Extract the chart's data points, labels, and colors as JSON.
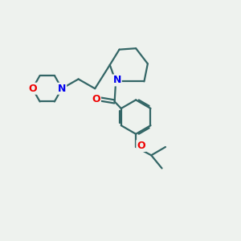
{
  "bg_color": "#eef2ee",
  "bond_color": "#336666",
  "N_color": "#0000ee",
  "O_color": "#ee0000",
  "bond_width": 1.6,
  "figsize": [
    3.0,
    3.0
  ],
  "dpi": 100,
  "xlim": [
    0,
    10
  ],
  "ylim": [
    0,
    10
  ]
}
